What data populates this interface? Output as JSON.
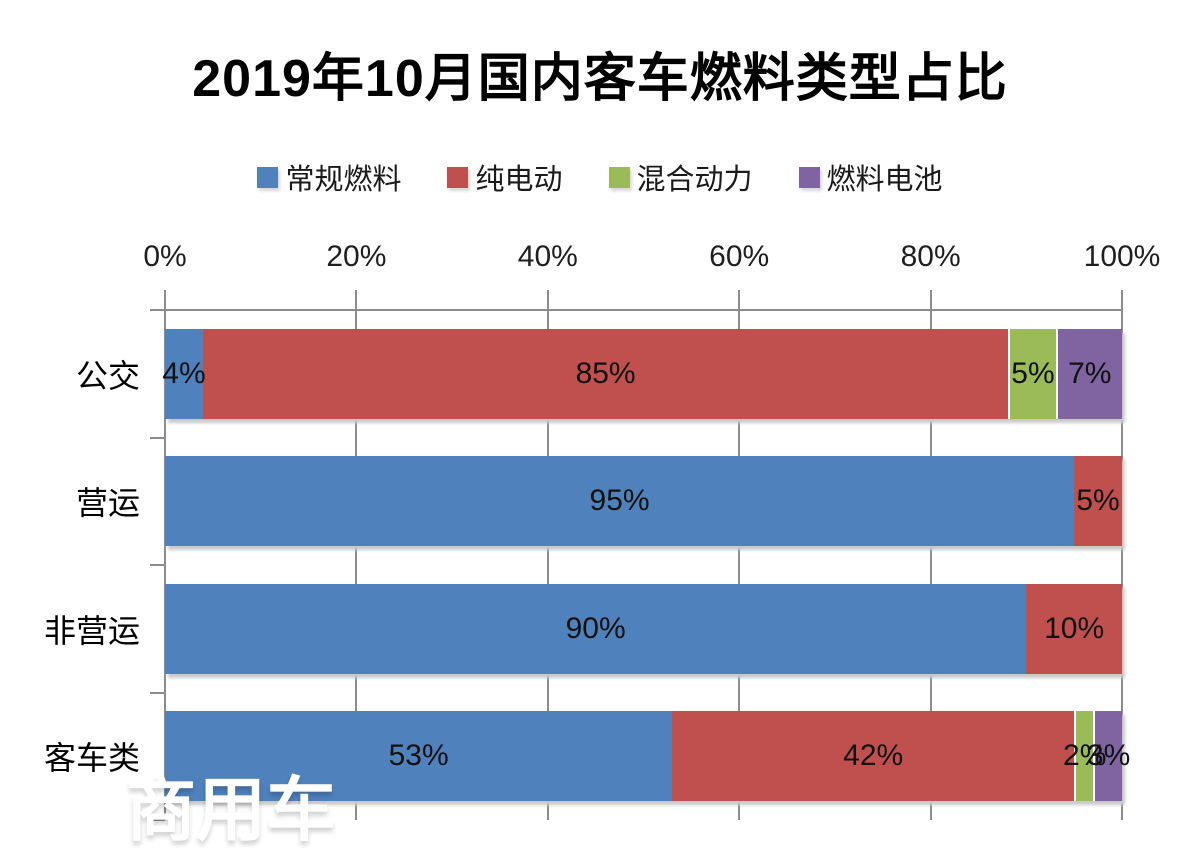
{
  "title": "2019年10月国内客车燃料类型占比",
  "watermark": "商用车",
  "chart_data": {
    "type": "bar",
    "subtype": "horizontal-stacked",
    "title": "2019年10月国内客车燃料类型占比",
    "categories": [
      "公交",
      "营运",
      "非营运",
      "客车类"
    ],
    "series": [
      {
        "name": "常规燃料",
        "color": "#4F81BD",
        "values": [
          4,
          95,
          90,
          53
        ]
      },
      {
        "name": "纯电动",
        "color": "#C0504D",
        "values": [
          85,
          5,
          10,
          42
        ]
      },
      {
        "name": "混合动力",
        "color": "#9BBB59",
        "values": [
          5,
          0,
          0,
          2
        ]
      },
      {
        "name": "燃料电池",
        "color": "#8064A2",
        "values": [
          7,
          0,
          0,
          3
        ]
      }
    ],
    "data_labels": [
      [
        "4%",
        "85%",
        "5%",
        "7%"
      ],
      [
        "95%",
        "5%",
        "",
        ""
      ],
      [
        "90%",
        "10%",
        "",
        ""
      ],
      [
        "53%",
        "42%",
        "2%",
        "3%"
      ]
    ],
    "x_ticks": [
      "0%",
      "20%",
      "40%",
      "60%",
      "80%",
      "100%"
    ],
    "xlim": [
      0,
      100
    ],
    "legend_position": "top",
    "grid": "vertical",
    "grid_color": "#8c8c8c",
    "background": "#ffffff"
  }
}
